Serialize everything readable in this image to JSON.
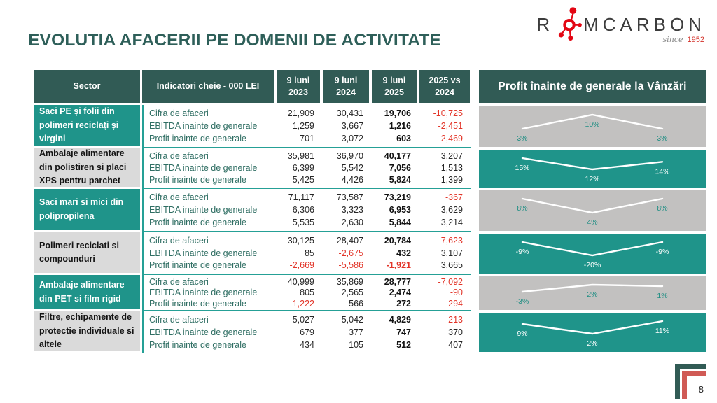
{
  "slide": {
    "title": "EVOLUTIA AFACERII PE DOMENII DE ACTIVITATE",
    "page_number": "8"
  },
  "logo": {
    "prefix": "R",
    "suffix": "MCARBON",
    "molecule_icon": "molecule-icon",
    "tagline_word": "since",
    "tagline_year": "1952"
  },
  "colors": {
    "title_teal": "#2E5F59",
    "header_dark_teal": "#315B55",
    "accent_teal": "#1F948A",
    "separator_teal": "#25A096",
    "band_gray": "#C2C1C0",
    "sector_gray": "#DADADA",
    "negative_red": "#E23428",
    "indicator_text_teal": "#2F6E63",
    "logo_red": "#E30613",
    "chart_line_white": "#FFFFFF"
  },
  "table": {
    "headers": {
      "sector": "Sector",
      "indicators": "Indicatori cheie - 000 LEI",
      "col2023": "9 luni\n2023",
      "col2024": "9 luni\n2024",
      "col2025": "9 luni\n2025",
      "colDelta": "2025 vs\n2024"
    },
    "groups": [
      {
        "sector": "Saci PE și folii din polimeri reciclați și virgini",
        "variant": "teal",
        "rows": [
          {
            "label": "Cifra de afaceri",
            "v2023": "21,909",
            "v2024": "30,431",
            "v2025": "19,706",
            "delta": "-10,725"
          },
          {
            "label": "EBITDA inainte de generale",
            "v2023": "1,259",
            "v2024": "3,667",
            "v2025": "1,216",
            "delta": "-2,451"
          },
          {
            "label": "Profit inainte de generale",
            "v2023": "701",
            "v2024": "3,072",
            "v2025": "603",
            "delta": "-2,469"
          }
        ]
      },
      {
        "sector": "Ambalaje alimentare din polistiren si placi XPS pentru parchet",
        "variant": "gray",
        "rows": [
          {
            "label": "Cifra de afaceri",
            "v2023": "35,981",
            "v2024": "36,970",
            "v2025": "40,177",
            "delta": "3,207"
          },
          {
            "label": "EBITDA inainte de generale",
            "v2023": "6,399",
            "v2024": "5,542",
            "v2025": "7,056",
            "delta": "1,513"
          },
          {
            "label": "Profit inainte de generale",
            "v2023": "5,425",
            "v2024": "4,426",
            "v2025": "5,824",
            "delta": "1,399"
          }
        ]
      },
      {
        "sector": "Saci mari si mici din polipropilena",
        "variant": "teal",
        "rows": [
          {
            "label": "Cifra de afaceri",
            "v2023": "71,117",
            "v2024": "73,587",
            "v2025": "73,219",
            "delta": "-367"
          },
          {
            "label": "EBITDA inainte de generale",
            "v2023": "6,306",
            "v2024": "3,323",
            "v2025": "6,953",
            "delta": "3,629"
          },
          {
            "label": "Profit inainte de generale",
            "v2023": "5,535",
            "v2024": "2,630",
            "v2025": "5,844",
            "delta": "3,214"
          }
        ]
      },
      {
        "sector": "Polimeri reciclati si compounduri",
        "variant": "gray",
        "rows": [
          {
            "label": "Cifra de afaceri",
            "v2023": "30,125",
            "v2024": "28,407",
            "v2025": "20,784",
            "delta": "-7,623"
          },
          {
            "label": "EBITDA inainte de generale",
            "v2023": "85",
            "v2024": "-2,675",
            "v2025": "432",
            "delta": "3,107"
          },
          {
            "label": "Profit inainte de generale",
            "v2023": "-2,669",
            "v2024": "-5,586",
            "v2025": "-1,921",
            "delta": "3,665"
          }
        ]
      },
      {
        "sector": "Ambalaje alimentare din PET si film rigid",
        "variant": "teal",
        "rows": [
          {
            "label": "Cifra de afaceri",
            "v2023": "40,999",
            "v2024": "35,869",
            "v2025": "28,777",
            "delta": "-7,092"
          },
          {
            "label": "EBITDA inainte de generale",
            "v2023": "805",
            "v2024": "2,565",
            "v2025": "2,474",
            "delta": "-90"
          },
          {
            "label": "Profit inainte de generale",
            "v2023": "-1,222",
            "v2024": "566",
            "v2025": "272",
            "delta": "-294"
          }
        ]
      },
      {
        "sector": "Filtre, echipamente de protectie individuale si altele",
        "variant": "gray",
        "rows": [
          {
            "label": "Cifra de afaceri",
            "v2023": "5,027",
            "v2024": "5,042",
            "v2025": "4,829",
            "delta": "-213"
          },
          {
            "label": "EBITDA inainte de generale",
            "v2023": "679",
            "v2024": "377",
            "v2025": "747",
            "delta": "370"
          },
          {
            "label": "Profit inainte de generale",
            "v2023": "434",
            "v2024": "105",
            "v2025": "512",
            "delta": "407"
          }
        ]
      }
    ]
  },
  "chart_panel": {
    "title": "Profit înainte de generale la Vânzări"
  },
  "chart_data": [
    {
      "type": "line",
      "categories": [
        "9 luni 2023",
        "9 luni 2024",
        "9 luni 2025"
      ],
      "values": [
        3,
        10,
        3
      ],
      "labels": [
        "3%",
        "10%",
        "3%"
      ],
      "background": "gray",
      "sector": "Saci PE și folii din polimeri reciclați și virgini",
      "ylabel": "Profit înainte de generale la Vânzări (%)"
    },
    {
      "type": "line",
      "categories": [
        "9 luni 2023",
        "9 luni 2024",
        "9 luni 2025"
      ],
      "values": [
        15,
        12,
        14
      ],
      "labels": [
        "15%",
        "12%",
        "14%"
      ],
      "background": "teal",
      "sector": "Ambalaje alimentare din polistiren si placi XPS pentru parchet",
      "ylabel": "Profit înainte de generale la Vânzări (%)"
    },
    {
      "type": "line",
      "categories": [
        "9 luni 2023",
        "9 luni 2024",
        "9 luni 2025"
      ],
      "values": [
        8,
        4,
        8
      ],
      "labels": [
        "8%",
        "4%",
        "8%"
      ],
      "background": "gray",
      "sector": "Saci mari si mici din polipropilena",
      "ylabel": "Profit înainte de generale la Vânzări (%)"
    },
    {
      "type": "line",
      "categories": [
        "9 luni 2023",
        "9 luni 2024",
        "9 luni 2025"
      ],
      "values": [
        -9,
        -20,
        -9
      ],
      "labels": [
        "-9%",
        "-20%",
        "-9%"
      ],
      "background": "teal",
      "sector": "Polimeri reciclati si compounduri",
      "ylabel": "Profit înainte de generale la Vânzări (%)"
    },
    {
      "type": "line",
      "categories": [
        "9 luni 2023",
        "9 luni 2024",
        "9 luni 2025"
      ],
      "values": [
        -3,
        2,
        1
      ],
      "labels": [
        "-3%",
        "2%",
        "1%"
      ],
      "background": "gray",
      "sector": "Ambalaje alimentare din PET si film rigid",
      "ylabel": "Profit înainte de generale la Vânzări (%)"
    },
    {
      "type": "line",
      "categories": [
        "9 luni 2023",
        "9 luni 2024",
        "9 luni 2025"
      ],
      "values": [
        9,
        2,
        11
      ],
      "labels": [
        "9%",
        "2%",
        "11%"
      ],
      "background": "teal",
      "sector": "Filtre, echipamente de protectie individuale si altele",
      "ylabel": "Profit înainte de generale la Vânzări (%)"
    }
  ]
}
